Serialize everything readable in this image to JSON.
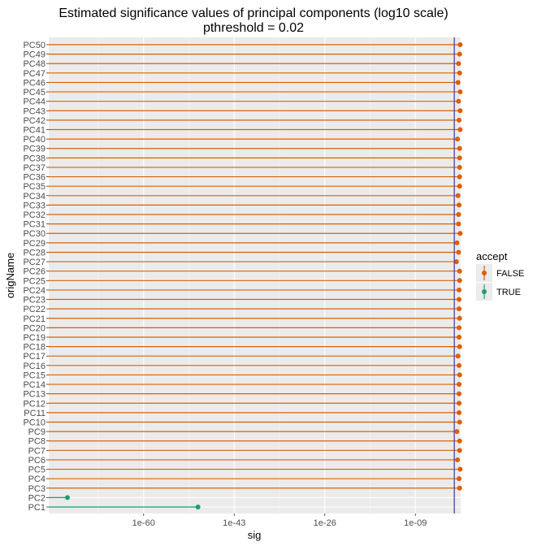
{
  "chart_data": {
    "type": "lollipop",
    "title_line1": "Estimated significance values of principal components (log10 scale)",
    "title_line2": "pthreshold =  0.02",
    "xlabel": "sig",
    "ylabel": "origName",
    "x_scale": "log10",
    "x_ticks": [
      -60,
      -43,
      -26,
      -9
    ],
    "x_tick_labels": [
      "1e-60",
      "1e-43",
      "1e-26",
      "1e-09"
    ],
    "xlim_log10": [
      -77.8,
      -0.5
    ],
    "threshold": 0.02,
    "threshold_log10": -1.7,
    "threshold_color": "#3f33a0",
    "legend": {
      "title": "accept",
      "entries": [
        {
          "label": "FALSE",
          "color": "#d95f02"
        },
        {
          "label": "TRUE",
          "color": "#1b9e77"
        }
      ]
    },
    "series": [
      {
        "name": "PC1",
        "log10_sig": -49.8,
        "accept": true
      },
      {
        "name": "PC2",
        "log10_sig": -74.3,
        "accept": true
      },
      {
        "name": "PC3",
        "log10_sig": -0.7,
        "accept": false
      },
      {
        "name": "PC4",
        "log10_sig": -0.8,
        "accept": false
      },
      {
        "name": "PC5",
        "log10_sig": -0.6,
        "accept": false
      },
      {
        "name": "PC6",
        "log10_sig": -1.1,
        "accept": false
      },
      {
        "name": "PC7",
        "log10_sig": -0.7,
        "accept": false
      },
      {
        "name": "PC8",
        "log10_sig": -0.7,
        "accept": false
      },
      {
        "name": "PC9",
        "log10_sig": -1.2,
        "accept": false
      },
      {
        "name": "PC10",
        "log10_sig": -0.7,
        "accept": false
      },
      {
        "name": "PC11",
        "log10_sig": -0.8,
        "accept": false
      },
      {
        "name": "PC12",
        "log10_sig": -0.8,
        "accept": false
      },
      {
        "name": "PC13",
        "log10_sig": -0.8,
        "accept": false
      },
      {
        "name": "PC14",
        "log10_sig": -0.8,
        "accept": false
      },
      {
        "name": "PC15",
        "log10_sig": -0.7,
        "accept": false
      },
      {
        "name": "PC16",
        "log10_sig": -0.8,
        "accept": false
      },
      {
        "name": "PC17",
        "log10_sig": -1.0,
        "accept": false
      },
      {
        "name": "PC18",
        "log10_sig": -0.7,
        "accept": false
      },
      {
        "name": "PC19",
        "log10_sig": -0.8,
        "accept": false
      },
      {
        "name": "PC20",
        "log10_sig": -0.8,
        "accept": false
      },
      {
        "name": "PC21",
        "log10_sig": -0.7,
        "accept": false
      },
      {
        "name": "PC22",
        "log10_sig": -0.8,
        "accept": false
      },
      {
        "name": "PC23",
        "log10_sig": -0.8,
        "accept": false
      },
      {
        "name": "PC24",
        "log10_sig": -0.8,
        "accept": false
      },
      {
        "name": "PC25",
        "log10_sig": -0.7,
        "accept": false
      },
      {
        "name": "PC26",
        "log10_sig": -0.7,
        "accept": false
      },
      {
        "name": "PC27",
        "log10_sig": -1.3,
        "accept": false
      },
      {
        "name": "PC28",
        "log10_sig": -0.9,
        "accept": false
      },
      {
        "name": "PC29",
        "log10_sig": -1.2,
        "accept": false
      },
      {
        "name": "PC30",
        "log10_sig": -0.6,
        "accept": false
      },
      {
        "name": "PC31",
        "log10_sig": -0.9,
        "accept": false
      },
      {
        "name": "PC32",
        "log10_sig": -0.9,
        "accept": false
      },
      {
        "name": "PC33",
        "log10_sig": -0.8,
        "accept": false
      },
      {
        "name": "PC34",
        "log10_sig": -1.0,
        "accept": false
      },
      {
        "name": "PC35",
        "log10_sig": -0.7,
        "accept": false
      },
      {
        "name": "PC36",
        "log10_sig": -0.7,
        "accept": false
      },
      {
        "name": "PC37",
        "log10_sig": -0.7,
        "accept": false
      },
      {
        "name": "PC38",
        "log10_sig": -0.7,
        "accept": false
      },
      {
        "name": "PC39",
        "log10_sig": -0.7,
        "accept": false
      },
      {
        "name": "PC40",
        "log10_sig": -1.1,
        "accept": false
      },
      {
        "name": "PC41",
        "log10_sig": -0.6,
        "accept": false
      },
      {
        "name": "PC42",
        "log10_sig": -0.8,
        "accept": false
      },
      {
        "name": "PC43",
        "log10_sig": -0.6,
        "accept": false
      },
      {
        "name": "PC44",
        "log10_sig": -0.9,
        "accept": false
      },
      {
        "name": "PC45",
        "log10_sig": -0.6,
        "accept": false
      },
      {
        "name": "PC46",
        "log10_sig": -1.0,
        "accept": false
      },
      {
        "name": "PC47",
        "log10_sig": -0.7,
        "accept": false
      },
      {
        "name": "PC48",
        "log10_sig": -0.9,
        "accept": false
      },
      {
        "name": "PC49",
        "log10_sig": -0.7,
        "accept": false
      },
      {
        "name": "PC50",
        "log10_sig": -0.6,
        "accept": false
      }
    ]
  }
}
